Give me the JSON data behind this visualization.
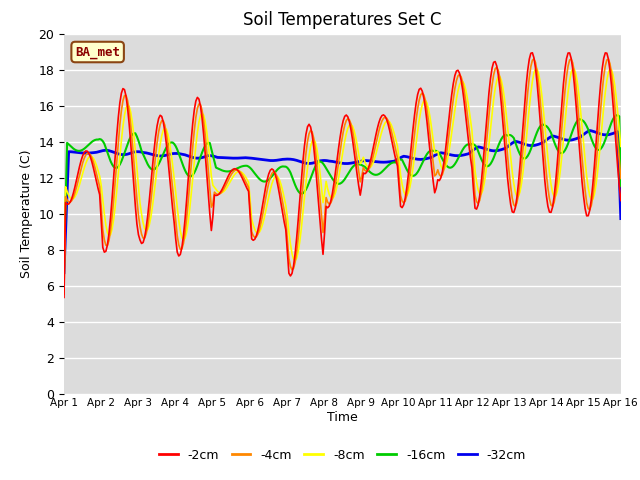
{
  "title": "Soil Temperatures Set C",
  "xlabel": "Time",
  "ylabel": "Soil Temperature (C)",
  "ylim": [
    0,
    20
  ],
  "yticks": [
    0,
    2,
    4,
    6,
    8,
    10,
    12,
    14,
    16,
    18,
    20
  ],
  "annotation": "BA_met",
  "bg_color": "#dcdcdc",
  "legend": [
    "-2cm",
    "-4cm",
    "-8cm",
    "-16cm",
    "-32cm"
  ],
  "line_colors": [
    "#ff0000",
    "#ff8800",
    "#ffff00",
    "#00cc00",
    "#0000ee"
  ],
  "line_widths": [
    1.2,
    1.2,
    1.2,
    1.5,
    2.0
  ],
  "x_tick_labels": [
    "Apr 1",
    "Apr 2",
    "Apr 3",
    "Apr 4",
    "Apr 5",
    "Apr 6",
    "Apr 7",
    "Apr 8",
    "Apr 9",
    "Apr 10",
    "Apr 11",
    "Apr 12",
    "Apr 13",
    "Apr 14",
    "Apr 15",
    "Apr 16"
  ],
  "n_days": 15,
  "pts_per_day": 24
}
